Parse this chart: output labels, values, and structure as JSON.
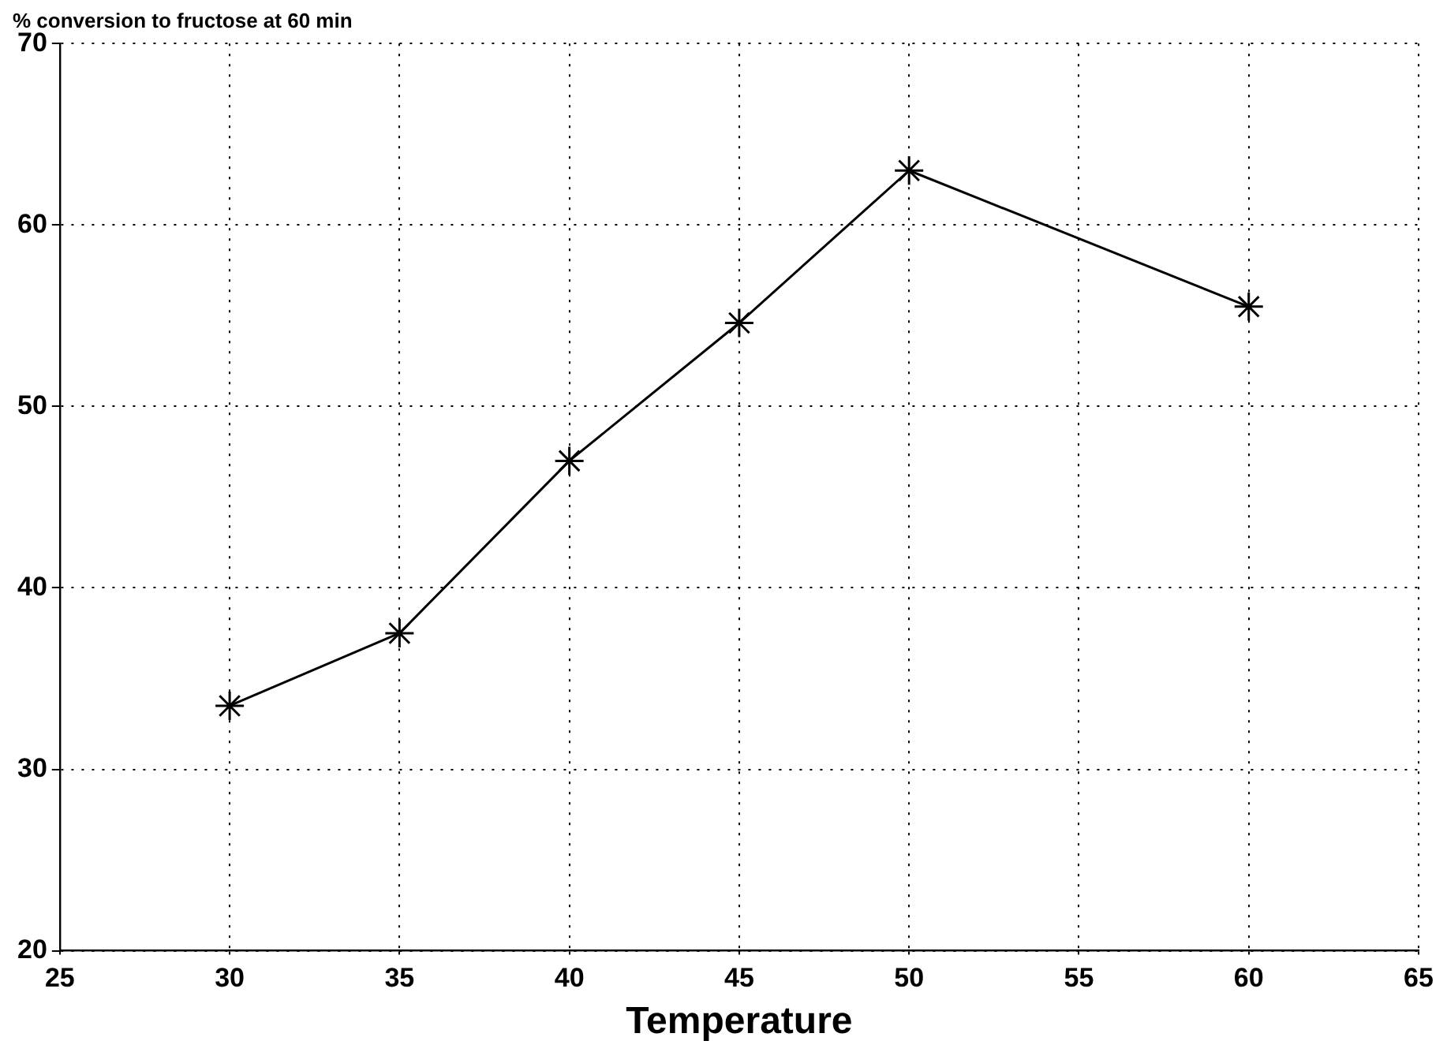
{
  "chart_data": {
    "type": "line",
    "title": "% conversion to fructose at 60 min",
    "xlabel": "Temperature",
    "x": [
      30,
      35,
      40,
      45,
      50,
      60
    ],
    "series": [
      {
        "color": "#000000",
        "values": [
          33.5,
          37.5,
          47,
          54.6,
          63,
          55.5
        ]
      }
    ],
    "xlim": [
      25,
      65
    ],
    "xticks": [
      25,
      30,
      35,
      40,
      45,
      50,
      55,
      60,
      65
    ],
    "ylim": [
      20,
      70
    ],
    "yticks": [
      20,
      30,
      40,
      50,
      60,
      70
    ],
    "grid": true,
    "legend": false,
    "marker": "cross",
    "line_style": "solid"
  }
}
